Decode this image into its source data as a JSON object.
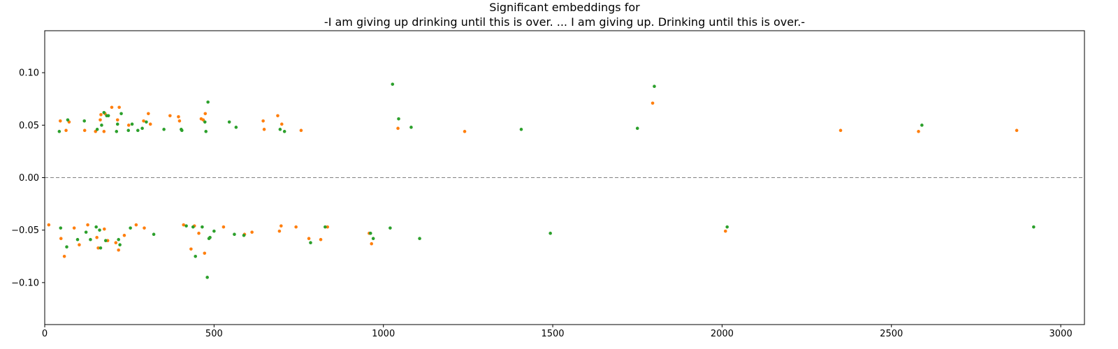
{
  "chart_data": {
    "type": "scatter",
    "title_line1": "Significant embeddings for",
    "title_line2": "-I am giving up  drinking until this is over. ... I am giving up. Drinking until this is over.-",
    "xlabel": "",
    "ylabel": "",
    "xlim": [
      0,
      3070
    ],
    "ylim": [
      -0.14,
      0.14
    ],
    "xticks": [
      0,
      500,
      1000,
      1500,
      2000,
      2500,
      3000
    ],
    "yticks": [
      -0.1,
      -0.05,
      0.0,
      0.05,
      0.1
    ],
    "reference_line": 0.0,
    "grid": false,
    "legend": "none",
    "series": [
      {
        "color": "#ff7f0e",
        "points": [
          [
            12,
            -0.045
          ],
          [
            46,
            0.054
          ],
          [
            48,
            -0.058
          ],
          [
            58,
            -0.075
          ],
          [
            63,
            0.045
          ],
          [
            72,
            0.053
          ],
          [
            87,
            -0.048
          ],
          [
            102,
            -0.064
          ],
          [
            118,
            0.045
          ],
          [
            127,
            -0.045
          ],
          [
            150,
            0.044
          ],
          [
            154,
            -0.057
          ],
          [
            158,
            -0.067
          ],
          [
            164,
            0.055
          ],
          [
            166,
            0.06
          ],
          [
            175,
            0.044
          ],
          [
            176,
            -0.049
          ],
          [
            178,
            0.061
          ],
          [
            186,
            -0.06
          ],
          [
            198,
            0.067
          ],
          [
            210,
            -0.062
          ],
          [
            215,
            0.055
          ],
          [
            218,
            -0.069
          ],
          [
            220,
            0.067
          ],
          [
            235,
            -0.055
          ],
          [
            248,
            0.05
          ],
          [
            270,
            -0.045
          ],
          [
            292,
            0.054
          ],
          [
            294,
            -0.048
          ],
          [
            306,
            0.061
          ],
          [
            312,
            0.051
          ],
          [
            370,
            0.059
          ],
          [
            395,
            0.058
          ],
          [
            398,
            0.054
          ],
          [
            410,
            -0.045
          ],
          [
            432,
            -0.068
          ],
          [
            442,
            -0.046
          ],
          [
            455,
            -0.053
          ],
          [
            462,
            0.056
          ],
          [
            468,
            0.055
          ],
          [
            472,
            -0.072
          ],
          [
            474,
            0.061
          ],
          [
            528,
            -0.047
          ],
          [
            590,
            -0.054
          ],
          [
            612,
            -0.052
          ],
          [
            645,
            0.054
          ],
          [
            648,
            0.046
          ],
          [
            688,
            0.059
          ],
          [
            693,
            -0.051
          ],
          [
            698,
            -0.046
          ],
          [
            700,
            0.051
          ],
          [
            742,
            -0.047
          ],
          [
            757,
            0.045
          ],
          [
            780,
            -0.058
          ],
          [
            815,
            -0.059
          ],
          [
            835,
            -0.047
          ],
          [
            958,
            -0.053
          ],
          [
            965,
            -0.063
          ],
          [
            1043,
            0.047
          ],
          [
            1240,
            0.044
          ],
          [
            1795,
            0.071
          ],
          [
            2010,
            -0.051
          ],
          [
            2350,
            0.045
          ],
          [
            2580,
            0.044
          ],
          [
            2870,
            0.045
          ]
        ]
      },
      {
        "color": "#2ca02c",
        "points": [
          [
            43,
            0.044
          ],
          [
            47,
            -0.048
          ],
          [
            65,
            -0.066
          ],
          [
            68,
            0.055
          ],
          [
            97,
            -0.059
          ],
          [
            117,
            0.054
          ],
          [
            122,
            -0.052
          ],
          [
            135,
            -0.059
          ],
          [
            152,
            -0.047
          ],
          [
            155,
            0.046
          ],
          [
            162,
            -0.05
          ],
          [
            165,
            -0.067
          ],
          [
            168,
            0.05
          ],
          [
            175,
            0.062
          ],
          [
            180,
            -0.06
          ],
          [
            183,
            0.059
          ],
          [
            188,
            0.059
          ],
          [
            212,
            0.044
          ],
          [
            215,
            0.051
          ],
          [
            218,
            -0.059
          ],
          [
            222,
            -0.064
          ],
          [
            226,
            0.061
          ],
          [
            247,
            0.045
          ],
          [
            253,
            -0.048
          ],
          [
            258,
            0.051
          ],
          [
            275,
            0.045
          ],
          [
            288,
            0.047
          ],
          [
            300,
            0.053
          ],
          [
            322,
            -0.054
          ],
          [
            352,
            0.046
          ],
          [
            403,
            0.046
          ],
          [
            405,
            0.045
          ],
          [
            418,
            -0.046
          ],
          [
            438,
            -0.047
          ],
          [
            445,
            -0.075
          ],
          [
            465,
            -0.047
          ],
          [
            473,
            0.053
          ],
          [
            476,
            0.044
          ],
          [
            480,
            -0.095
          ],
          [
            482,
            0.072
          ],
          [
            485,
            -0.058
          ],
          [
            488,
            -0.057
          ],
          [
            500,
            -0.051
          ],
          [
            545,
            0.053
          ],
          [
            565,
            0.048
          ],
          [
            560,
            -0.054
          ],
          [
            588,
            -0.055
          ],
          [
            695,
            0.046
          ],
          [
            708,
            0.044
          ],
          [
            785,
            -0.062
          ],
          [
            828,
            -0.047
          ],
          [
            962,
            -0.053
          ],
          [
            970,
            -0.058
          ],
          [
            1020,
            -0.048
          ],
          [
            1027,
            0.089
          ],
          [
            1045,
            0.056
          ],
          [
            1082,
            0.048
          ],
          [
            1107,
            -0.058
          ],
          [
            1407,
            0.046
          ],
          [
            1493,
            -0.053
          ],
          [
            1750,
            0.047
          ],
          [
            1800,
            0.087
          ],
          [
            2015,
            -0.047
          ],
          [
            2590,
            0.05
          ],
          [
            2920,
            -0.047
          ]
        ]
      }
    ]
  }
}
